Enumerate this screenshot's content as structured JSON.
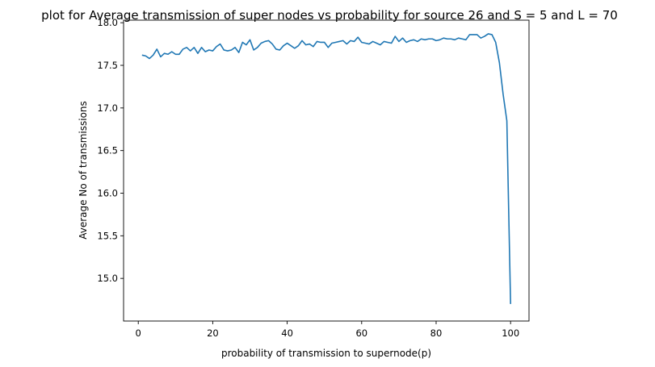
{
  "chart_data": {
    "type": "line",
    "title": "plot for Average transmission of super nodes vs probability for source 26 and S = 5 and L = 70",
    "xlabel": "probability of transmission to supernode(p)",
    "ylabel": "Average No of transmissions",
    "xlim": [
      -3.95,
      104.95
    ],
    "ylim": [
      14.5,
      18.03
    ],
    "xticks": [
      0,
      20,
      40,
      60,
      80,
      100
    ],
    "yticks": [
      15.0,
      15.5,
      16.0,
      16.5,
      17.0,
      17.5,
      18.0
    ],
    "grid": false,
    "line_color": "#1f77b4",
    "series": [
      {
        "x": [
          1,
          2,
          3,
          4,
          5,
          6,
          7,
          8,
          9,
          10,
          11,
          12,
          13,
          14,
          15,
          16,
          17,
          18,
          19,
          20,
          21,
          22,
          23,
          24,
          25,
          26,
          27,
          28,
          29,
          30,
          31,
          32,
          33,
          34,
          35,
          36,
          37,
          38,
          39,
          40,
          41,
          42,
          43,
          44,
          45,
          46,
          47,
          48,
          49,
          50,
          51,
          52,
          53,
          54,
          55,
          56,
          57,
          58,
          59,
          60,
          61,
          62,
          63,
          64,
          65,
          66,
          67,
          68,
          69,
          70,
          71,
          72,
          73,
          74,
          75,
          76,
          77,
          78,
          79,
          80,
          81,
          82,
          83,
          84,
          85,
          86,
          87,
          88,
          89,
          90,
          91,
          92,
          93,
          94,
          95,
          96,
          97,
          98,
          99,
          100
        ],
        "values": [
          17.62,
          17.61,
          17.58,
          17.62,
          17.69,
          17.6,
          17.64,
          17.63,
          17.66,
          17.63,
          17.63,
          17.69,
          17.71,
          17.67,
          17.71,
          17.64,
          17.71,
          17.66,
          17.68,
          17.67,
          17.72,
          17.75,
          17.68,
          17.67,
          17.68,
          17.71,
          17.65,
          17.77,
          17.74,
          17.8,
          17.68,
          17.71,
          17.76,
          17.78,
          17.79,
          17.75,
          17.69,
          17.68,
          17.73,
          17.76,
          17.73,
          17.7,
          17.73,
          17.79,
          17.74,
          17.75,
          17.72,
          17.78,
          17.77,
          17.77,
          17.71,
          17.76,
          17.77,
          17.78,
          17.79,
          17.75,
          17.79,
          17.78,
          17.83,
          17.77,
          17.76,
          17.75,
          17.78,
          17.76,
          17.74,
          17.78,
          17.77,
          17.76,
          17.84,
          17.78,
          17.82,
          17.77,
          17.79,
          17.8,
          17.78,
          17.81,
          17.8,
          17.81,
          17.81,
          17.79,
          17.8,
          17.82,
          17.81,
          17.81,
          17.8,
          17.82,
          17.81,
          17.8,
          17.86,
          17.86,
          17.86,
          17.82,
          17.84,
          17.87,
          17.86,
          17.77,
          17.53,
          17.16,
          16.85,
          14.7
        ]
      }
    ]
  }
}
